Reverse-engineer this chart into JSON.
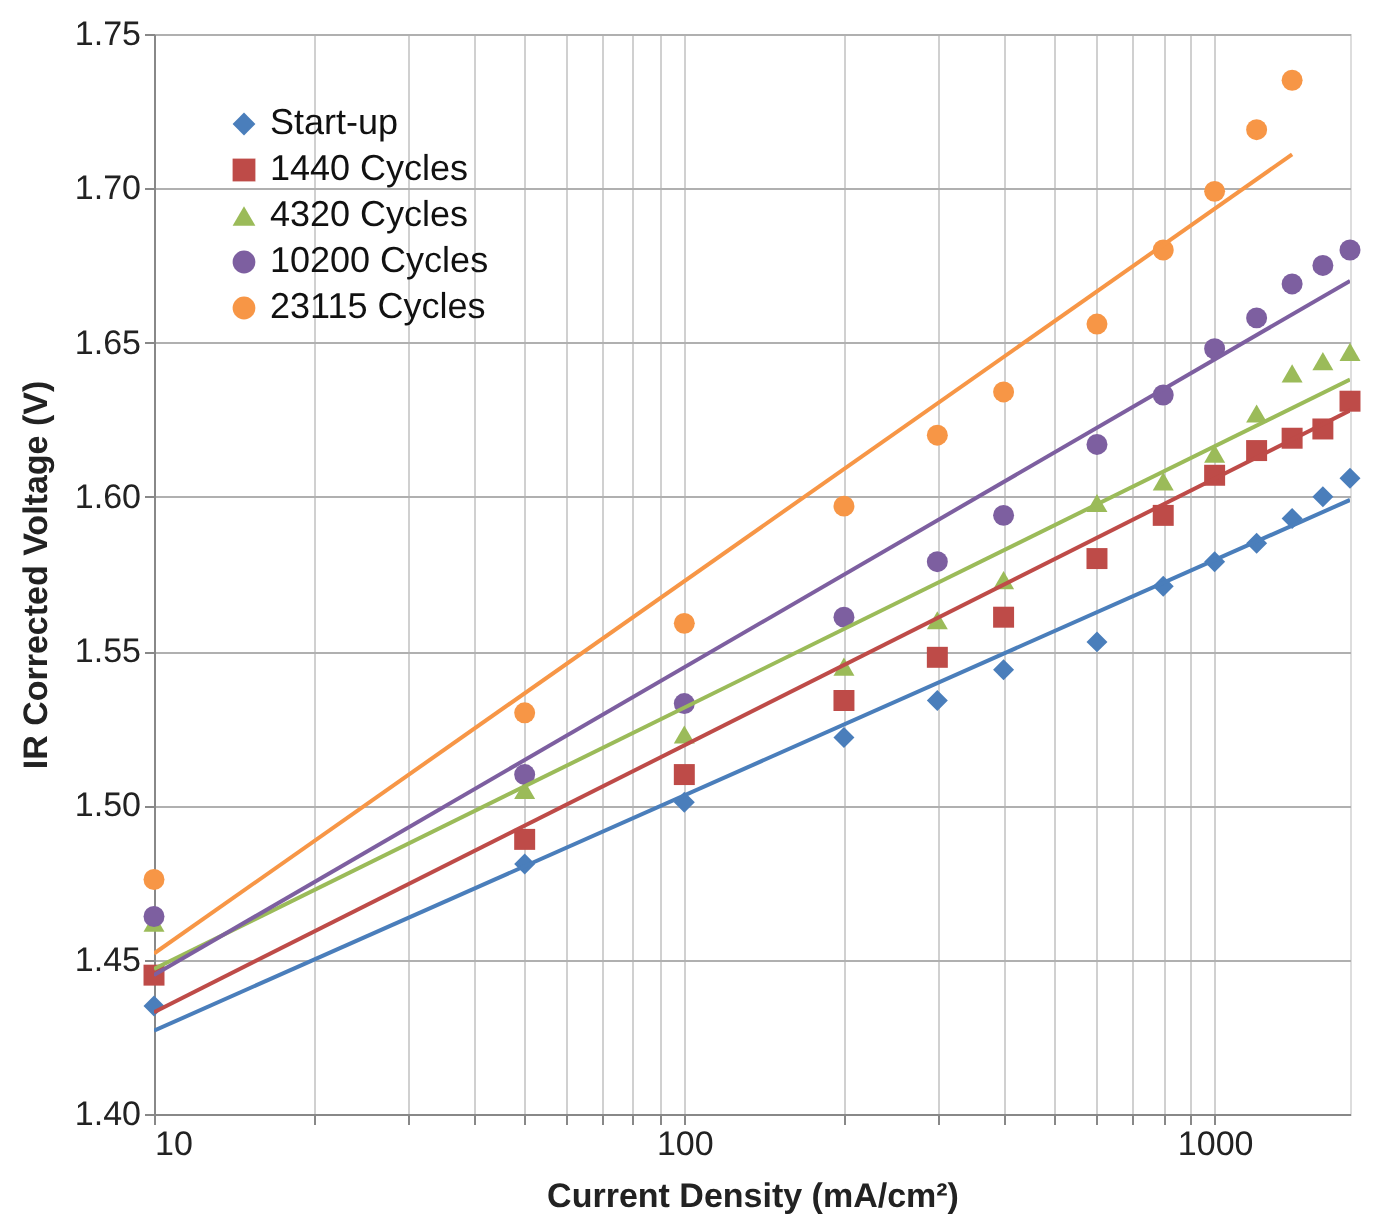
{
  "chart_data": {
    "type": "scatter",
    "xlabel": "Current Density (mA/cm²)",
    "ylabel": "IR Corrected Voltage (V)",
    "x": [
      10,
      50,
      100,
      200,
      300,
      400,
      600,
      800,
      1000,
      1200,
      1400,
      1600,
      1800
    ],
    "series": [
      {
        "name": "Start-up",
        "color": "#4a7ebb",
        "marker": "diamond",
        "values": [
          1.435,
          1.481,
          1.501,
          1.522,
          1.534,
          1.544,
          1.553,
          1.571,
          1.579,
          1.585,
          1.593,
          1.6,
          1.606
        ]
      },
      {
        "name": "1440 Cycles",
        "color": "#be4b48",
        "marker": "square",
        "values": [
          1.445,
          1.489,
          1.51,
          1.534,
          1.548,
          1.561,
          1.58,
          1.594,
          1.607,
          1.615,
          1.619,
          1.622,
          1.631
        ]
      },
      {
        "name": "4320 Cycles",
        "color": "#9bbb59",
        "marker": "triangle",
        "values": [
          1.462,
          1.505,
          1.523,
          1.545,
          1.56,
          1.573,
          1.598,
          1.605,
          1.614,
          1.627,
          1.64,
          1.644,
          1.647
        ]
      },
      {
        "name": "10200 Cycles",
        "color": "#7d5fa0",
        "marker": "circle",
        "values": [
          1.464,
          1.51,
          1.533,
          1.561,
          1.579,
          1.594,
          1.617,
          1.633,
          1.648,
          1.658,
          1.669,
          1.675,
          1.68
        ]
      },
      {
        "name": "23115 Cycles",
        "color": "#f79646",
        "marker": "circle",
        "x": [
          10,
          50,
          100,
          200,
          300,
          400,
          600,
          800,
          1000,
          1200,
          1400
        ],
        "values": [
          1.476,
          1.53,
          1.559,
          1.597,
          1.62,
          1.634,
          1.656,
          1.68,
          1.699,
          1.719,
          1.735
        ]
      },
      {
        "type": "line",
        "color": "#4a7ebb",
        "x": [
          10,
          1800
        ],
        "values": [
          1.427,
          1.599
        ]
      },
      {
        "type": "line",
        "color": "#be4b48",
        "x": [
          10,
          1800
        ],
        "values": [
          1.433,
          1.628
        ]
      },
      {
        "type": "line",
        "color": "#9bbb59",
        "x": [
          10,
          1800
        ],
        "values": [
          1.447,
          1.638
        ]
      },
      {
        "type": "line",
        "color": "#7d5fa0",
        "x": [
          10,
          1800
        ],
        "values": [
          1.445,
          1.67
        ]
      },
      {
        "type": "line",
        "color": "#f79646",
        "x": [
          10,
          1400
        ],
        "values": [
          1.452,
          1.711
        ]
      }
    ],
    "log": "x",
    "xlim": [
      10,
      1800
    ],
    "xticks": [
      10,
      {
        "value": 20,
        "label": null
      },
      {
        "value": 30,
        "label": null
      },
      {
        "value": 40,
        "label": null
      },
      {
        "value": 50,
        "label": null
      },
      {
        "value": 60,
        "label": null
      },
      {
        "value": 70,
        "label": null
      },
      {
        "value": 80,
        "label": null
      },
      {
        "value": 90,
        "label": null
      },
      100,
      {
        "value": 200,
        "label": null
      },
      {
        "value": 300,
        "label": null
      },
      {
        "value": 400,
        "label": null
      },
      {
        "value": 500,
        "label": null
      },
      {
        "value": 600,
        "label": null
      },
      {
        "value": 700,
        "label": null
      },
      {
        "value": 800,
        "label": null
      },
      {
        "value": 900,
        "label": null
      },
      1000
    ],
    "ylim": [
      1.4,
      1.75
    ],
    "yticks": [
      {
        "value": 1.4,
        "label": "1.40"
      },
      {
        "value": 1.45,
        "label": "1.45"
      },
      {
        "value": 1.5,
        "label": "1.50"
      },
      {
        "value": 1.55,
        "label": "1.55"
      },
      {
        "value": 1.6,
        "label": "1.60"
      },
      {
        "value": 1.65,
        "label": "1.65"
      },
      {
        "value": 1.7,
        "label": "1.70"
      },
      {
        "value": 1.75,
        "label": "1.75"
      }
    ],
    "grid": true,
    "legend": "top left"
  }
}
